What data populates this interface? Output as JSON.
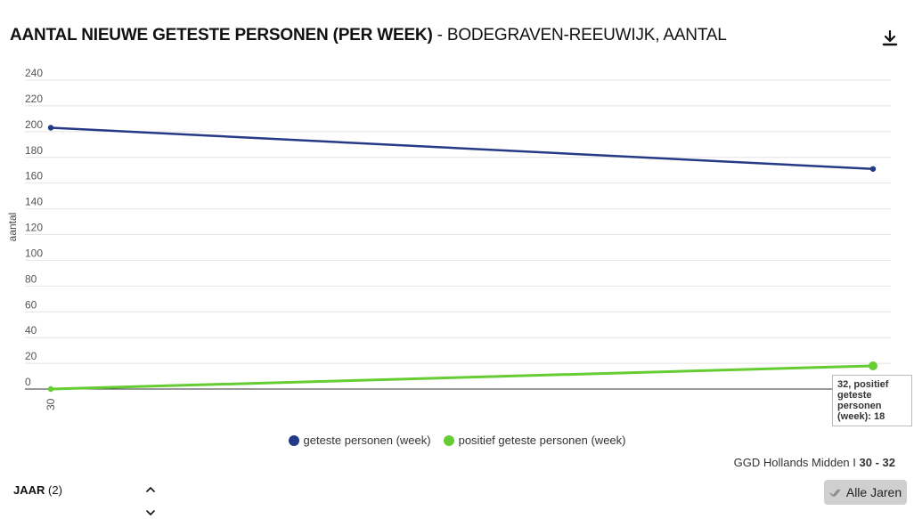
{
  "header": {
    "title_main": "AANTAL NIEUWE GETESTE PERSONEN (PER WEEK)",
    "title_sub": " - BODEGRAVEN-REEUWIJK, AANTAL",
    "download_icon": "download-icon"
  },
  "chart_data": {
    "type": "line",
    "title": "AANTAL NIEUWE GETESTE PERSONEN (PER WEEK) - BODEGRAVEN-REEUWIJK, AANTAL",
    "xlabel": "",
    "ylabel": "aantal",
    "x": [
      30,
      32
    ],
    "x_tick_labels": [
      "30"
    ],
    "ylim": [
      0,
      240
    ],
    "y_ticks": [
      0,
      20,
      40,
      60,
      80,
      100,
      120,
      140,
      160,
      180,
      200,
      220,
      240
    ],
    "grid": true,
    "legend_position": "bottom-center",
    "series": [
      {
        "name": "geteste personen (week)",
        "color": "#253a87",
        "values": [
          203,
          171
        ]
      },
      {
        "name": "positief geteste personen (week)",
        "color": "#66cc33",
        "values": [
          0,
          18
        ]
      }
    ],
    "tooltip": "32, positief geteste personen (week): 18"
  },
  "footer": {
    "source_prefix": "GGD Hollands Midden I ",
    "source_range": "30 - 32"
  },
  "filter": {
    "label": "JAAR",
    "count": "(2)",
    "button_label": "Alle Jaren"
  }
}
